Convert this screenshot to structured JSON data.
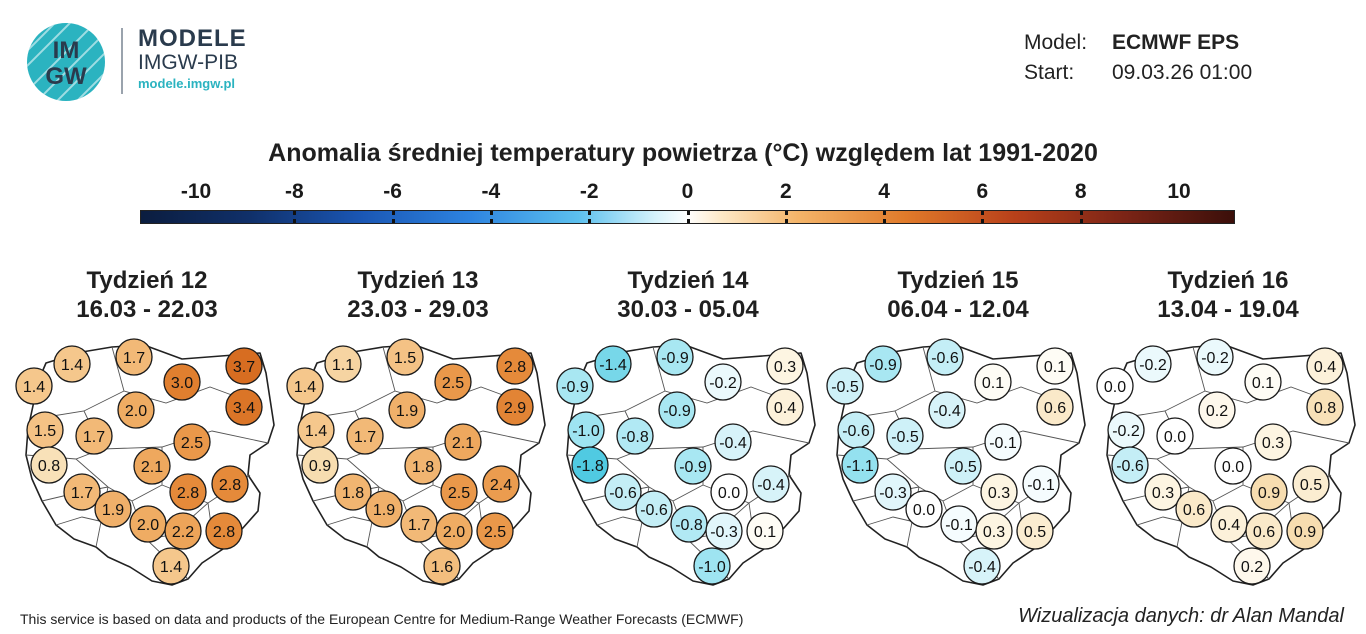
{
  "logo": {
    "mark_line1": "IM",
    "mark_line2": "GW",
    "name": "MODELE",
    "org": "IMGW-PIB",
    "url": "modele.imgw.pl"
  },
  "model_info": {
    "model_label": "Model:",
    "model_value": "ECMWF EPS",
    "start_label": "Start:",
    "start_value": "09.03.26 01:00"
  },
  "title": "Anomalia średniej temperatury powietrza (°C) względem lat 1991-2020",
  "colorbar": {
    "min": -10,
    "max": 10,
    "ticks": [
      "-10",
      "-8",
      "-6",
      "-4",
      "-2",
      "0",
      "2",
      "4",
      "6",
      "8",
      "10"
    ]
  },
  "weeks": [
    {
      "label": "Tydzień 12",
      "dates": "16.03 - 22.03",
      "values": [
        "1.4",
        "1.7",
        "3.7",
        "3.0",
        "1.4",
        "3.4",
        "2.0",
        "1.5",
        "1.7",
        "2.5",
        "0.8",
        "2.1",
        "2.8",
        "1.7",
        "2.8",
        "1.9",
        "2.0",
        "2.2",
        "2.8",
        "1.4"
      ]
    },
    {
      "label": "Tydzień 13",
      "dates": "23.03 - 29.03",
      "values": [
        "1.1",
        "1.5",
        "2.8",
        "2.5",
        "1.4",
        "2.9",
        "1.9",
        "1.4",
        "1.7",
        "2.1",
        "0.9",
        "1.8",
        "2.4",
        "1.8",
        "2.5",
        "1.9",
        "1.7",
        "2.0",
        "2.5",
        "1.6"
      ]
    },
    {
      "label": "Tydzień 14",
      "dates": "30.03 - 05.04",
      "values": [
        "-1.4",
        "-0.9",
        "0.3",
        "-0.2",
        "-0.9",
        "0.4",
        "-0.9",
        "-1.0",
        "-0.8",
        "-0.4",
        "-1.8",
        "-0.9",
        "-0.4",
        "-0.6",
        "0.0",
        "-0.6",
        "-0.8",
        "-0.3",
        "0.1",
        "-1.0"
      ]
    },
    {
      "label": "Tydzień 15",
      "dates": "06.04 - 12.04",
      "values": [
        "-0.9",
        "-0.6",
        "0.1",
        "0.1",
        "-0.5",
        "0.6",
        "-0.4",
        "-0.6",
        "-0.5",
        "-0.1",
        "-1.1",
        "-0.5",
        "-0.1",
        "-0.3",
        "0.3",
        "0.0",
        "-0.1",
        "0.3",
        "0.5",
        "-0.4"
      ]
    },
    {
      "label": "Tydzień 16",
      "dates": "13.04 - 19.04",
      "values": [
        "-0.2",
        "-0.2",
        "0.4",
        "0.1",
        "0.0",
        "0.8",
        "0.2",
        "-0.2",
        "0.0",
        "0.3",
        "-0.6",
        "0.0",
        "0.5",
        "0.3",
        "0.9",
        "0.6",
        "0.4",
        "0.6",
        "0.9",
        "0.2"
      ]
    }
  ],
  "footer": {
    "left": "This service is based on data and products of the European Centre for Medium-Range Weather Forecasts (ECMWF)",
    "right": "Wizualizacja danych: dr Alan Mandal"
  }
}
